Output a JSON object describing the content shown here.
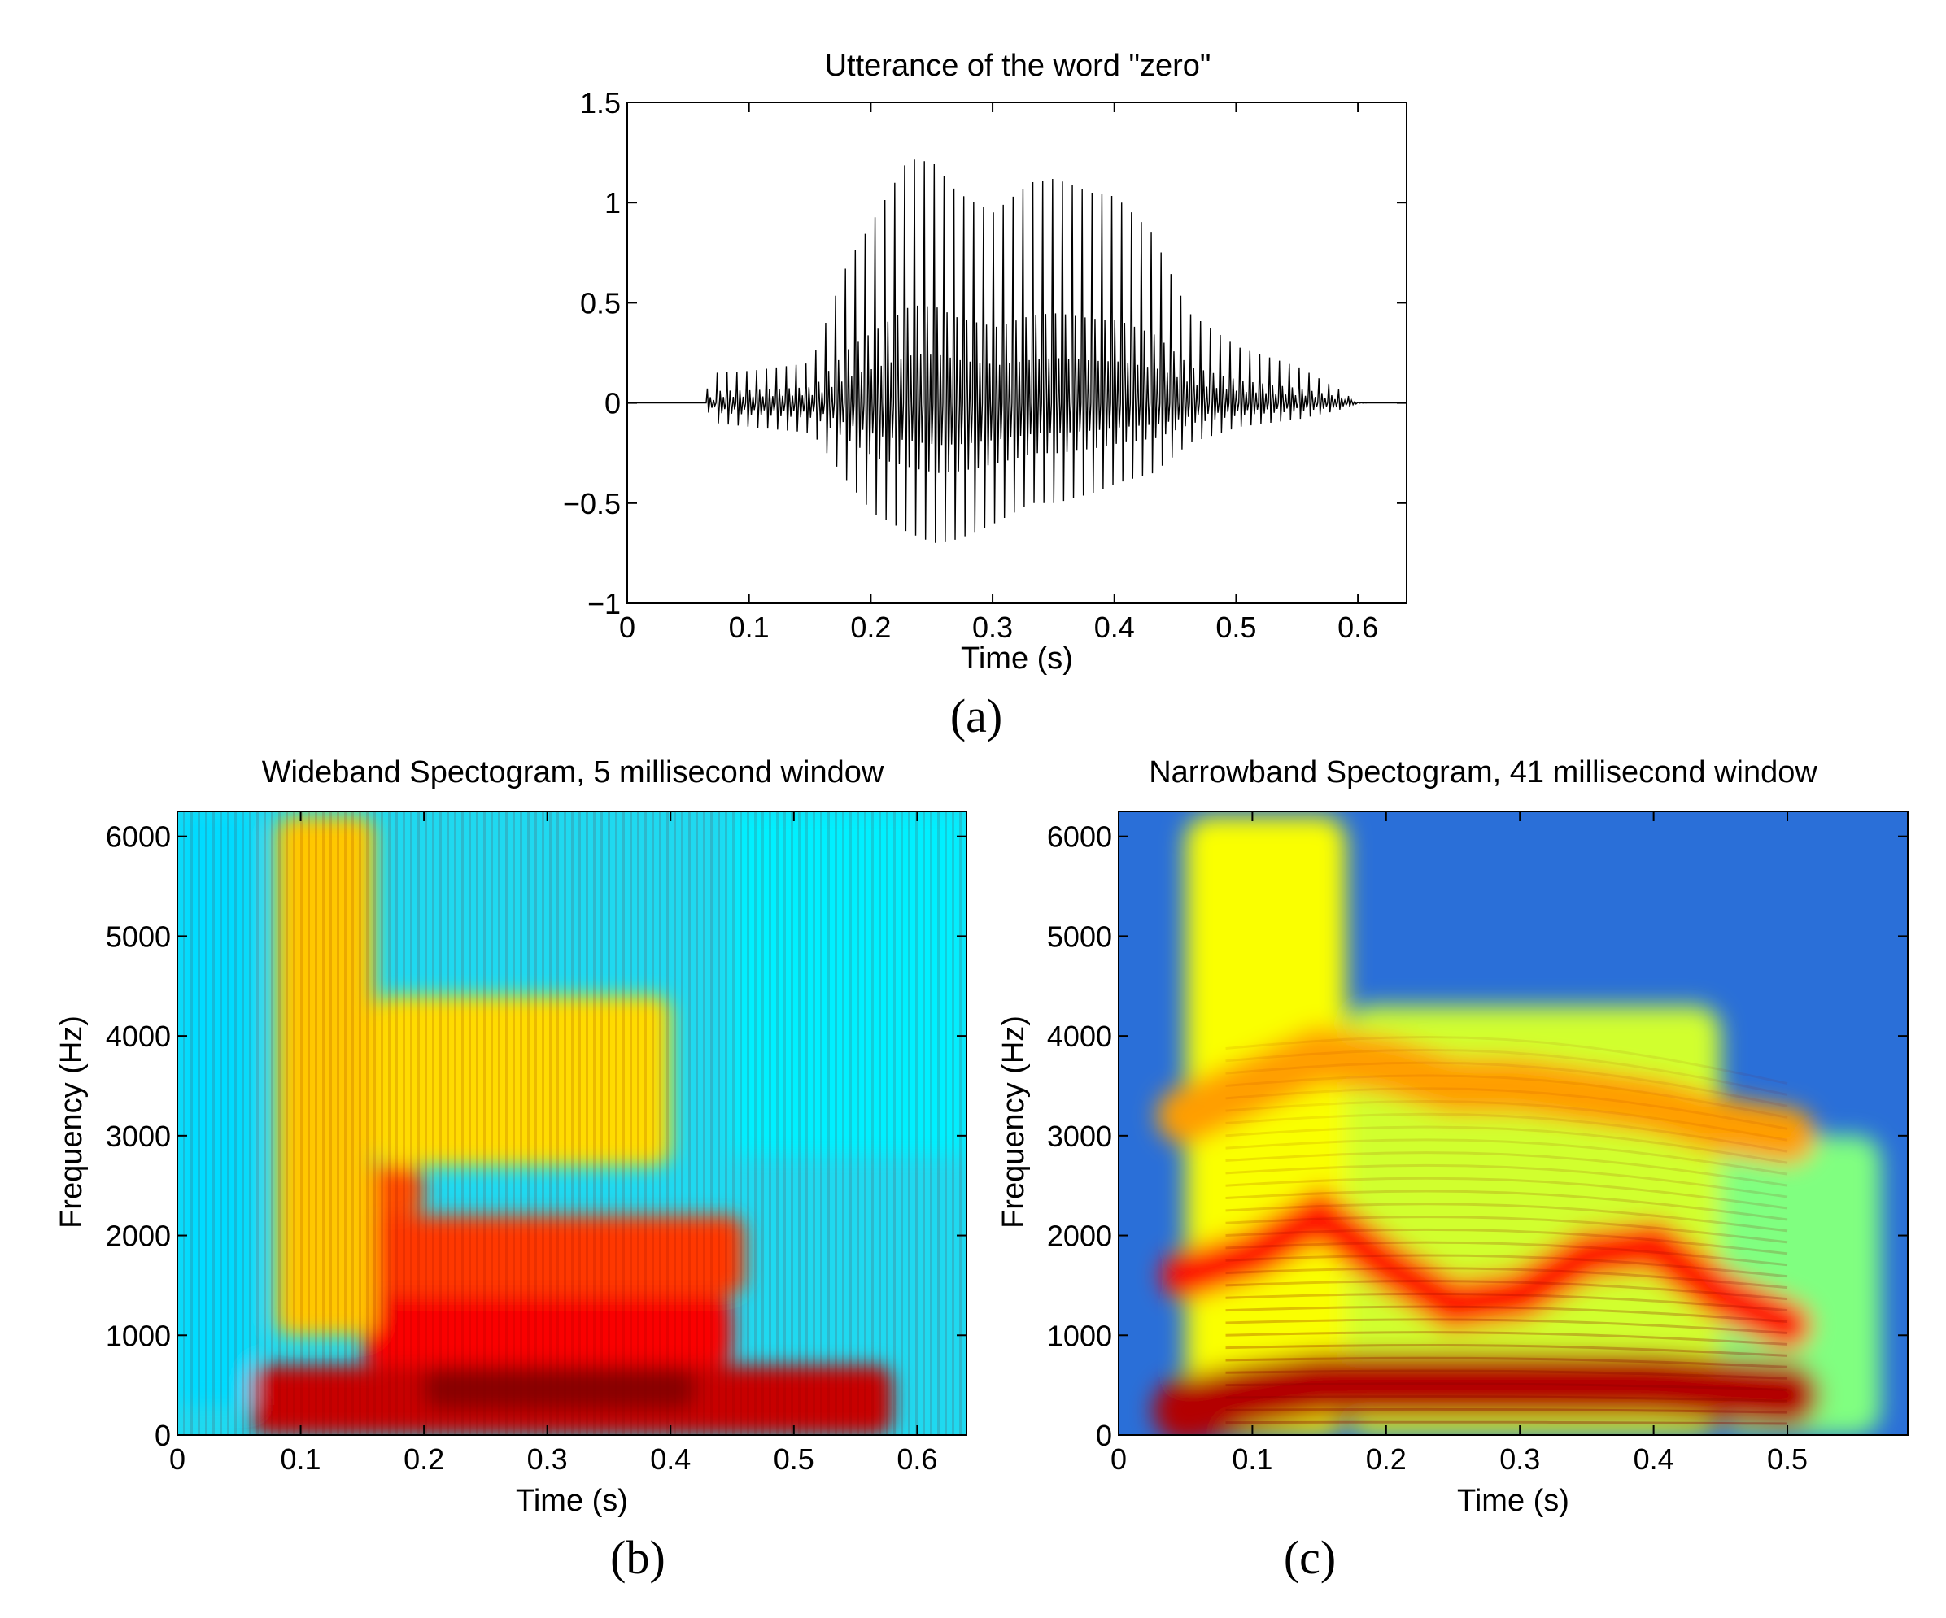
{
  "chart_data": [
    {
      "type": "line",
      "panel": "a",
      "title": "Utterance of the word \"zero\"",
      "xlabel": "Time (s)",
      "ylabel": "",
      "caption": "(a)",
      "xlim": [
        0,
        0.64
      ],
      "ylim": [
        -1,
        1.5
      ],
      "xticks": [
        "0",
        "0.1",
        "0.2",
        "0.3",
        "0.4",
        "0.5",
        "0.6"
      ],
      "yticks": [
        "1.5",
        "1",
        "0.5",
        "0",
        "−0.5",
        "−1"
      ],
      "line_color": "#000000",
      "envelope": {
        "t": [
          0,
          0.06,
          0.07,
          0.1,
          0.15,
          0.18,
          0.2,
          0.23,
          0.25,
          0.27,
          0.3,
          0.33,
          0.35,
          0.38,
          0.4,
          0.43,
          0.46,
          0.5,
          0.55,
          0.58,
          0.6,
          0.64
        ],
        "pos": [
          0,
          0,
          0.15,
          0.16,
          0.2,
          0.7,
          0.9,
          1.22,
          1.2,
          1.05,
          0.95,
          1.1,
          1.12,
          1.05,
          1.03,
          0.85,
          0.45,
          0.28,
          0.18,
          0.08,
          0,
          0
        ],
        "neg": [
          0,
          0,
          -0.1,
          -0.12,
          -0.15,
          -0.4,
          -0.55,
          -0.65,
          -0.7,
          -0.68,
          -0.6,
          -0.5,
          -0.5,
          -0.45,
          -0.4,
          -0.35,
          -0.2,
          -0.12,
          -0.08,
          -0.04,
          0,
          0
        ]
      }
    },
    {
      "type": "heatmap",
      "panel": "b",
      "title": "Wideband Spectogram, 5 millisecond window",
      "xlabel": "Time (s)",
      "ylabel": "Frequency (Hz)",
      "caption": "(b)",
      "xlim": [
        0,
        0.64
      ],
      "ylim": [
        0,
        6250
      ],
      "xticks": [
        "0",
        "0.1",
        "0.2",
        "0.3",
        "0.4",
        "0.5",
        "0.6"
      ],
      "yticks": [
        "6000",
        "5000",
        "4000",
        "3000",
        "2000",
        "1000",
        "0"
      ],
      "colormap": "jet",
      "regions": [
        {
          "t": [
            0.06,
            0.58
          ],
          "f": [
            0,
            700
          ],
          "level": 0.93
        },
        {
          "t": [
            0.15,
            0.45
          ],
          "f": [
            700,
            1400
          ],
          "level": 0.88
        },
        {
          "t": [
            0.15,
            0.46
          ],
          "f": [
            1400,
            2200
          ],
          "level": 0.82
        },
        {
          "t": [
            0.15,
            0.2
          ],
          "f": [
            2200,
            2700
          ],
          "level": 0.8
        },
        {
          "t": [
            0.08,
            0.16
          ],
          "f": [
            1000,
            6200
          ],
          "level": 0.68
        },
        {
          "t": [
            0.16,
            0.4
          ],
          "f": [
            2700,
            4400
          ],
          "level": 0.66
        }
      ]
    },
    {
      "type": "heatmap",
      "panel": "c",
      "title": "Narrowband Spectogram, 41 millisecond window",
      "xlabel": "Time (s)",
      "ylabel": "Frequency (Hz)",
      "caption": "(c)",
      "xlim": [
        0,
        0.59
      ],
      "ylim": [
        0,
        6250
      ],
      "xticks": [
        "0",
        "0.1",
        "0.2",
        "0.3",
        "0.4",
        "0.5"
      ],
      "yticks": [
        "6000",
        "5000",
        "4000",
        "3000",
        "2000",
        "1000",
        "0"
      ],
      "colormap": "jet",
      "harmonics_hz": 125,
      "formants": {
        "t": [
          0.05,
          0.1,
          0.15,
          0.2,
          0.25,
          0.3,
          0.35,
          0.4,
          0.45,
          0.5
        ],
        "f1": [
          250,
          400,
          500,
          500,
          500,
          500,
          500,
          500,
          450,
          400
        ],
        "f2": [
          1600,
          1800,
          2200,
          1700,
          1300,
          1400,
          1800,
          1900,
          1400,
          1100
        ],
        "f3": [
          3200,
          3500,
          3800,
          3700,
          3500,
          3500,
          3400,
          3300,
          3100,
          3000
        ]
      }
    }
  ]
}
